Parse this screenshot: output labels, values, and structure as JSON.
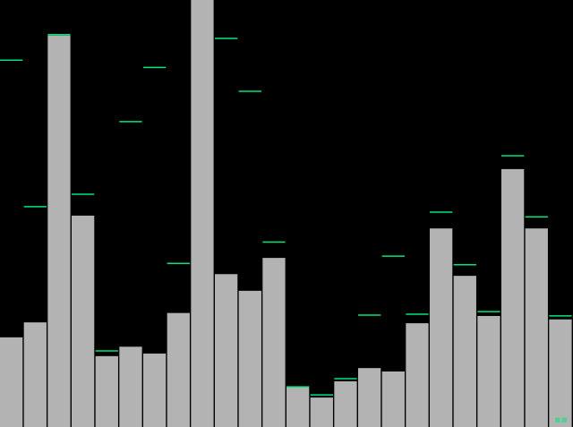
{
  "visualizer": {
    "background_color": "#000000",
    "bar_color": "#b3b3b3",
    "peak_color": "#00e676",
    "corner_icon": "peak-meter-glyph",
    "corner_glyph": "▪▪"
  },
  "chart_data": {
    "type": "bar",
    "ylim": [
      0,
      1
    ],
    "values": [
      0.21,
      0.245,
      0.917,
      0.495,
      0.166,
      0.188,
      0.172,
      0.267,
      1.0,
      0.358,
      0.319,
      0.396,
      0.094,
      0.069,
      0.107,
      0.138,
      0.13,
      0.243,
      0.465,
      0.354,
      0.26,
      0.604,
      0.465,
      0.252
    ],
    "peaks": [
      0.857,
      0.514,
      0.917,
      0.543,
      0.176,
      0.713,
      0.84,
      0.381,
      null,
      0.908,
      0.784,
      0.431,
      0.092,
      0.073,
      0.111,
      0.26,
      0.398,
      0.262,
      0.501,
      0.378,
      0.268,
      0.633,
      0.49,
      0.258
    ],
    "grid": false,
    "legend": "none"
  }
}
